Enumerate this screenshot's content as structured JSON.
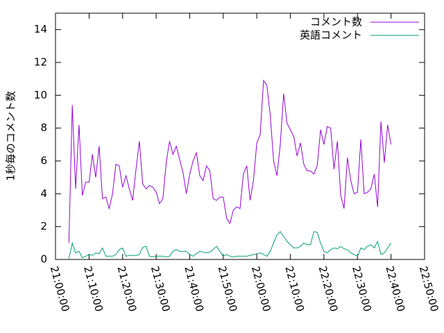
{
  "chart_data": {
    "type": "line",
    "ylabel": "1秒毎のコメント数",
    "x": [
      "21:04:00",
      "21:05:00",
      "21:06:00",
      "21:07:00",
      "21:08:00",
      "21:09:00",
      "21:10:00",
      "21:11:00",
      "21:12:00",
      "21:13:00",
      "21:14:00",
      "21:15:00",
      "21:16:00",
      "21:17:00",
      "21:18:00",
      "21:19:00",
      "21:20:00",
      "21:21:00",
      "21:22:00",
      "21:23:00",
      "21:24:00",
      "21:25:00",
      "21:26:00",
      "21:27:00",
      "21:28:00",
      "21:29:00",
      "21:30:00",
      "21:31:00",
      "21:32:00",
      "21:33:00",
      "21:34:00",
      "21:35:00",
      "21:36:00",
      "21:37:00",
      "21:38:00",
      "21:39:00",
      "21:40:00",
      "21:41:00",
      "21:42:00",
      "21:43:00",
      "21:44:00",
      "21:45:00",
      "21:46:00",
      "21:47:00",
      "21:48:00",
      "21:49:00",
      "21:50:00",
      "21:51:00",
      "21:52:00",
      "21:53:00",
      "21:54:00",
      "21:55:00",
      "21:56:00",
      "21:57:00",
      "21:58:00",
      "21:59:00",
      "22:00:00",
      "22:01:00",
      "22:02:00",
      "22:03:00",
      "22:04:00",
      "22:05:00",
      "22:06:00",
      "22:07:00",
      "22:08:00",
      "22:09:00",
      "22:10:00",
      "22:11:00",
      "22:12:00",
      "22:13:00",
      "22:14:00",
      "22:15:00",
      "22:16:00",
      "22:17:00",
      "22:18:00",
      "22:19:00",
      "22:20:00",
      "22:21:00",
      "22:22:00",
      "22:23:00",
      "22:24:00",
      "22:25:00",
      "22:26:00",
      "22:27:00",
      "22:28:00",
      "22:29:00",
      "22:30:00",
      "22:31:00",
      "22:32:00",
      "22:33:00",
      "22:34:00",
      "22:35:00",
      "22:36:00",
      "22:37:00",
      "22:38:00",
      "22:39:00",
      "22:40:00"
    ],
    "series": [
      {
        "name": "コメント数",
        "color": "#9400d3",
        "values": [
          1.0,
          9.4,
          4.3,
          8.2,
          3.9,
          4.7,
          4.7,
          6.4,
          5.0,
          6.9,
          3.7,
          3.8,
          3.1,
          4.0,
          5.8,
          5.7,
          4.4,
          5.1,
          4.3,
          3.6,
          5.5,
          7.2,
          4.6,
          4.3,
          4.5,
          4.4,
          4.1,
          3.4,
          3.7,
          5.9,
          7.2,
          6.4,
          6.9,
          6.1,
          5.3,
          4.0,
          5.2,
          6.0,
          6.5,
          5.1,
          4.8,
          5.7,
          5.4,
          3.7,
          3.6,
          3.8,
          3.8,
          2.5,
          2.2,
          3.0,
          3.2,
          3.1,
          5.2,
          5.7,
          3.6,
          4.8,
          7.1,
          7.6,
          10.9,
          10.6,
          8.8,
          6.0,
          5.1,
          7.0,
          10.1,
          8.3,
          7.9,
          7.5,
          6.3,
          7.1,
          5.8,
          5.4,
          5.4,
          5.2,
          5.7,
          7.9,
          7.0,
          8.1,
          8.0,
          5.5,
          7.2,
          3.9,
          3.1,
          6.2,
          4.8,
          4.0,
          4.1,
          7.3,
          4.0,
          4.1,
          4.3,
          5.2,
          3.2,
          8.4,
          5.9,
          8.2,
          7.0
        ]
      },
      {
        "name": "英語コメント",
        "color": "#009e73",
        "values": [
          0.05,
          1.0,
          0.4,
          0.5,
          0.1,
          0.2,
          0.3,
          0.25,
          0.4,
          0.35,
          0.7,
          0.2,
          0.2,
          0.2,
          0.3,
          0.6,
          0.7,
          0.2,
          0.25,
          0.25,
          0.25,
          0.3,
          0.75,
          0.8,
          0.2,
          0.15,
          0.2,
          0.2,
          0.2,
          0.15,
          0.2,
          0.5,
          0.6,
          0.5,
          0.5,
          0.5,
          0.3,
          0.2,
          0.35,
          0.5,
          0.45,
          0.4,
          0.45,
          0.6,
          0.8,
          0.5,
          0.2,
          0.3,
          0.2,
          0.15,
          0.2,
          0.2,
          0.2,
          0.2,
          0.25,
          0.3,
          0.35,
          0.4,
          0.3,
          0.2,
          0.5,
          1.0,
          1.5,
          1.7,
          1.4,
          1.1,
          0.9,
          0.7,
          0.7,
          0.8,
          1.0,
          0.9,
          0.9,
          1.7,
          1.65,
          1.0,
          0.5,
          0.4,
          0.6,
          0.7,
          0.65,
          0.8,
          0.65,
          0.6,
          0.4,
          0.3,
          0.2,
          0.7,
          0.6,
          0.8,
          0.9,
          0.7,
          1.1,
          0.3,
          0.4,
          0.7,
          1.0
        ]
      }
    ],
    "xlim": [
      "21:00:00",
      "22:50:00"
    ],
    "xticks": [
      "21:00:00",
      "21:10:00",
      "21:20:00",
      "21:30:00",
      "21:40:00",
      "21:50:00",
      "22:00:00",
      "22:10:00",
      "22:20:00",
      "22:30:00",
      "22:40:00",
      "22:50:00"
    ],
    "ylim": [
      0,
      15
    ],
    "yticks": [
      0,
      2,
      4,
      6,
      8,
      10,
      12,
      14
    ],
    "legend": "top-right"
  }
}
